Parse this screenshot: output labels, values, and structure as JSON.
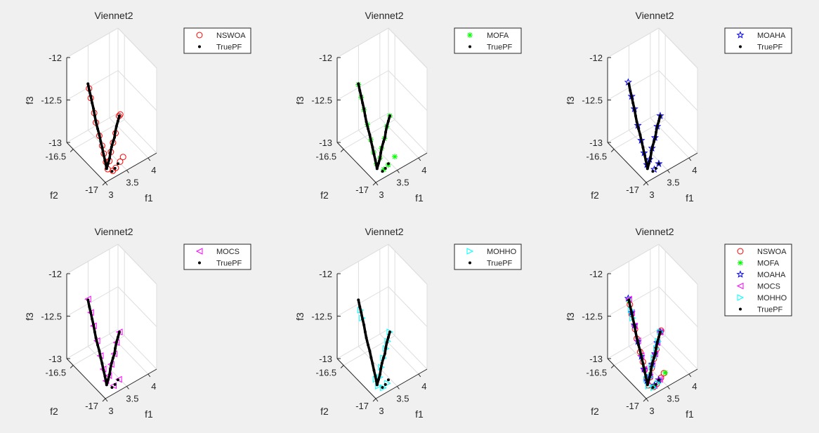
{
  "colors": {
    "NSWOA": "#ff0000",
    "MOFA": "#00ff00",
    "MOAHA": "#0000ff",
    "MOCS": "#ff00ff",
    "MOHHO": "#00ffff",
    "TruePF": "#000000"
  },
  "markers": {
    "NSWOA": "circle",
    "MOFA": "asterisk",
    "MOAHA": "pentagram",
    "MOCS": "triangle-left",
    "MOHHO": "triangle-right",
    "TruePF": "dot"
  },
  "series_points": {
    "TruePF": [
      [
        3.0,
        -16.73,
        -12.05
      ],
      [
        3.01,
        -16.745,
        -12.12
      ],
      [
        3.02,
        -16.76,
        -12.18
      ],
      [
        3.03,
        -16.775,
        -12.25
      ],
      [
        3.04,
        -16.79,
        -12.31
      ],
      [
        3.045,
        -16.805,
        -12.38
      ],
      [
        3.05,
        -16.82,
        -12.44
      ],
      [
        3.06,
        -16.84,
        -12.51
      ],
      [
        3.07,
        -16.86,
        -12.57
      ],
      [
        3.08,
        -16.875,
        -12.64
      ],
      [
        3.09,
        -16.89,
        -12.7
      ],
      [
        3.1,
        -16.905,
        -12.77
      ],
      [
        3.11,
        -16.92,
        -12.83
      ],
      [
        3.12,
        -16.94,
        -12.92
      ],
      [
        3.17,
        -16.93,
        -12.88
      ],
      [
        3.22,
        -16.92,
        -12.84
      ],
      [
        3.26,
        -16.905,
        -12.8
      ],
      [
        3.31,
        -16.89,
        -12.76
      ],
      [
        3.36,
        -16.88,
        -12.72
      ],
      [
        3.41,
        -16.87,
        -12.69
      ],
      [
        3.45,
        -16.855,
        -12.65
      ],
      [
        3.5,
        -16.84,
        -12.61
      ],
      [
        3.55,
        -16.83,
        -12.57
      ],
      [
        3.6,
        -16.82,
        -12.53
      ],
      [
        3.2,
        -16.97,
        -12.95
      ],
      [
        3.3,
        -16.95,
        -12.96
      ],
      [
        3.4,
        -16.93,
        -12.95
      ]
    ],
    "NSWOA": [
      [
        3.01,
        -16.74,
        -12.1
      ],
      [
        3.02,
        -16.76,
        -12.2
      ],
      [
        3.04,
        -16.8,
        -12.35
      ],
      [
        3.05,
        -16.82,
        -12.45
      ],
      [
        3.07,
        -16.86,
        -12.58
      ],
      [
        3.09,
        -16.89,
        -12.68
      ],
      [
        3.1,
        -16.91,
        -12.76
      ],
      [
        3.12,
        -16.93,
        -12.85
      ],
      [
        3.13,
        -16.95,
        -12.92
      ],
      [
        3.2,
        -16.93,
        -12.86
      ],
      [
        3.28,
        -16.9,
        -12.8
      ],
      [
        3.36,
        -16.88,
        -12.73
      ],
      [
        3.45,
        -16.86,
        -12.66
      ],
      [
        3.59,
        -16.82,
        -12.53
      ],
      [
        3.62,
        -16.82,
        -12.52
      ],
      [
        3.22,
        -16.97,
        -12.95
      ],
      [
        3.32,
        -16.95,
        -12.96
      ],
      [
        3.45,
        -16.93,
        -12.94
      ],
      [
        3.55,
        -16.91,
        -12.93
      ]
    ],
    "MOFA": [
      [
        3.0,
        -16.73,
        -12.06
      ],
      [
        3.02,
        -16.76,
        -12.19
      ],
      [
        3.04,
        -16.79,
        -12.32
      ],
      [
        3.06,
        -16.83,
        -12.47
      ],
      [
        3.08,
        -16.87,
        -12.62
      ],
      [
        3.1,
        -16.9,
        -12.75
      ],
      [
        3.12,
        -16.93,
        -12.87
      ],
      [
        3.22,
        -16.92,
        -12.84
      ],
      [
        3.3,
        -16.89,
        -12.77
      ],
      [
        3.4,
        -16.87,
        -12.7
      ],
      [
        3.5,
        -16.84,
        -12.61
      ],
      [
        3.6,
        -16.82,
        -12.53
      ],
      [
        3.25,
        -16.96,
        -12.95
      ],
      [
        3.38,
        -16.94,
        -12.95
      ],
      [
        3.55,
        -16.93,
        -12.91
      ]
    ],
    "MOAHA": [
      [
        3.0,
        -16.72,
        -12.04
      ],
      [
        3.02,
        -16.76,
        -12.18
      ],
      [
        3.04,
        -16.79,
        -12.31
      ],
      [
        3.06,
        -16.83,
        -12.48
      ],
      [
        3.08,
        -16.87,
        -12.63
      ],
      [
        3.1,
        -16.9,
        -12.76
      ],
      [
        3.12,
        -16.93,
        -12.88
      ],
      [
        3.2,
        -16.92,
        -12.85
      ],
      [
        3.3,
        -16.89,
        -12.77
      ],
      [
        3.4,
        -16.87,
        -12.69
      ],
      [
        3.5,
        -16.84,
        -12.61
      ],
      [
        3.6,
        -16.82,
        -12.53
      ],
      [
        3.25,
        -16.96,
        -12.95
      ],
      [
        3.4,
        -16.93,
        -12.95
      ]
    ],
    "MOCS": [
      [
        3.0,
        -16.73,
        -12.04
      ],
      [
        3.02,
        -16.76,
        -12.18
      ],
      [
        3.04,
        -16.79,
        -12.32
      ],
      [
        3.06,
        -16.83,
        -12.47
      ],
      [
        3.08,
        -16.87,
        -12.62
      ],
      [
        3.1,
        -16.9,
        -12.76
      ],
      [
        3.12,
        -16.93,
        -12.88
      ],
      [
        3.2,
        -16.92,
        -12.85
      ],
      [
        3.3,
        -16.89,
        -12.77
      ],
      [
        3.4,
        -16.87,
        -12.69
      ],
      [
        3.5,
        -16.84,
        -12.61
      ],
      [
        3.6,
        -16.82,
        -12.53
      ],
      [
        3.25,
        -16.96,
        -12.95
      ],
      [
        3.42,
        -16.93,
        -12.95
      ]
    ],
    "MOHHO": [
      [
        3.02,
        -16.75,
        -12.16
      ],
      [
        3.03,
        -16.77,
        -12.24
      ],
      [
        3.11,
        -16.93,
        -12.86
      ],
      [
        3.13,
        -16.95,
        -12.93
      ],
      [
        3.2,
        -16.93,
        -12.86
      ],
      [
        3.28,
        -16.9,
        -12.79
      ],
      [
        3.36,
        -16.88,
        -12.72
      ],
      [
        3.45,
        -16.86,
        -12.65
      ],
      [
        3.52,
        -16.84,
        -12.6
      ],
      [
        3.6,
        -16.82,
        -12.53
      ],
      [
        3.22,
        -16.97,
        -12.96
      ],
      [
        3.35,
        -16.95,
        -12.96
      ]
    ]
  },
  "chart_data": [
    {
      "type": "scatter3d",
      "title": "Viennet2",
      "xlabel": "f1",
      "ylabel": "f2",
      "zlabel": "f3",
      "xticks": [
        "3",
        "3.5",
        "4"
      ],
      "yticks": [
        "-17",
        "-16.5"
      ],
      "zticks": [
        "-13",
        "-12.5",
        "-12"
      ],
      "xlim": [
        3,
        4.2
      ],
      "ylim": [
        -17,
        -16.4
      ],
      "zlim": [
        -13,
        -12
      ],
      "grid": true,
      "legend": "outside-right",
      "series": [
        "NSWOA",
        "TruePF"
      ]
    },
    {
      "type": "scatter3d",
      "title": "Viennet2",
      "xlabel": "f1",
      "ylabel": "f2",
      "zlabel": "f3",
      "xticks": [
        "3",
        "3.5",
        "4"
      ],
      "yticks": [
        "-17",
        "-16.5"
      ],
      "zticks": [
        "-13",
        "-12.5",
        "-12"
      ],
      "xlim": [
        3,
        4.2
      ],
      "ylim": [
        -17,
        -16.4
      ],
      "zlim": [
        -13,
        -12
      ],
      "grid": true,
      "legend": "outside-right",
      "series": [
        "MOFA",
        "TruePF"
      ]
    },
    {
      "type": "scatter3d",
      "title": "Viennet2",
      "xlabel": "f1",
      "ylabel": "f2",
      "zlabel": "f3",
      "xticks": [
        "3",
        "3.5",
        "4"
      ],
      "yticks": [
        "-17",
        "-16.5"
      ],
      "zticks": [
        "-13",
        "-12.5",
        "-12"
      ],
      "xlim": [
        3,
        4.2
      ],
      "ylim": [
        -17,
        -16.4
      ],
      "zlim": [
        -13,
        -12
      ],
      "grid": true,
      "legend": "outside-right",
      "series": [
        "MOAHA",
        "TruePF"
      ]
    },
    {
      "type": "scatter3d",
      "title": "Viennet2",
      "xlabel": "f1",
      "ylabel": "f2",
      "zlabel": "f3",
      "xticks": [
        "3",
        "3.5",
        "4"
      ],
      "yticks": [
        "-17",
        "-16.5"
      ],
      "zticks": [
        "-13",
        "-12.5",
        "-12"
      ],
      "xlim": [
        3,
        4.2
      ],
      "ylim": [
        -17,
        -16.4
      ],
      "zlim": [
        -13,
        -12
      ],
      "grid": true,
      "legend": "outside-right",
      "series": [
        "MOCS",
        "TruePF"
      ]
    },
    {
      "type": "scatter3d",
      "title": "Viennet2",
      "xlabel": "f1",
      "ylabel": "f2",
      "zlabel": "f3",
      "xticks": [
        "3",
        "3.5",
        "4"
      ],
      "yticks": [
        "-17",
        "-16.5"
      ],
      "zticks": [
        "-13",
        "-12.5",
        "-12"
      ],
      "xlim": [
        3,
        4.2
      ],
      "ylim": [
        -17,
        -16.4
      ],
      "zlim": [
        -13,
        -12
      ],
      "grid": true,
      "legend": "outside-right",
      "series": [
        "MOHHO",
        "TruePF"
      ]
    },
    {
      "type": "scatter3d",
      "title": "Viennet2",
      "xlabel": "f1",
      "ylabel": "f2",
      "zlabel": "f3",
      "xticks": [
        "3",
        "3.5",
        "4"
      ],
      "yticks": [
        "-17",
        "-16.5"
      ],
      "zticks": [
        "-13",
        "-12.5",
        "-12"
      ],
      "xlim": [
        3,
        4.2
      ],
      "ylim": [
        -17,
        -16.4
      ],
      "zlim": [
        -13,
        -12
      ],
      "grid": true,
      "legend": "outside-right",
      "series": [
        "NSWOA",
        "MOFA",
        "MOAHA",
        "MOCS",
        "MOHHO",
        "TruePF"
      ]
    }
  ]
}
